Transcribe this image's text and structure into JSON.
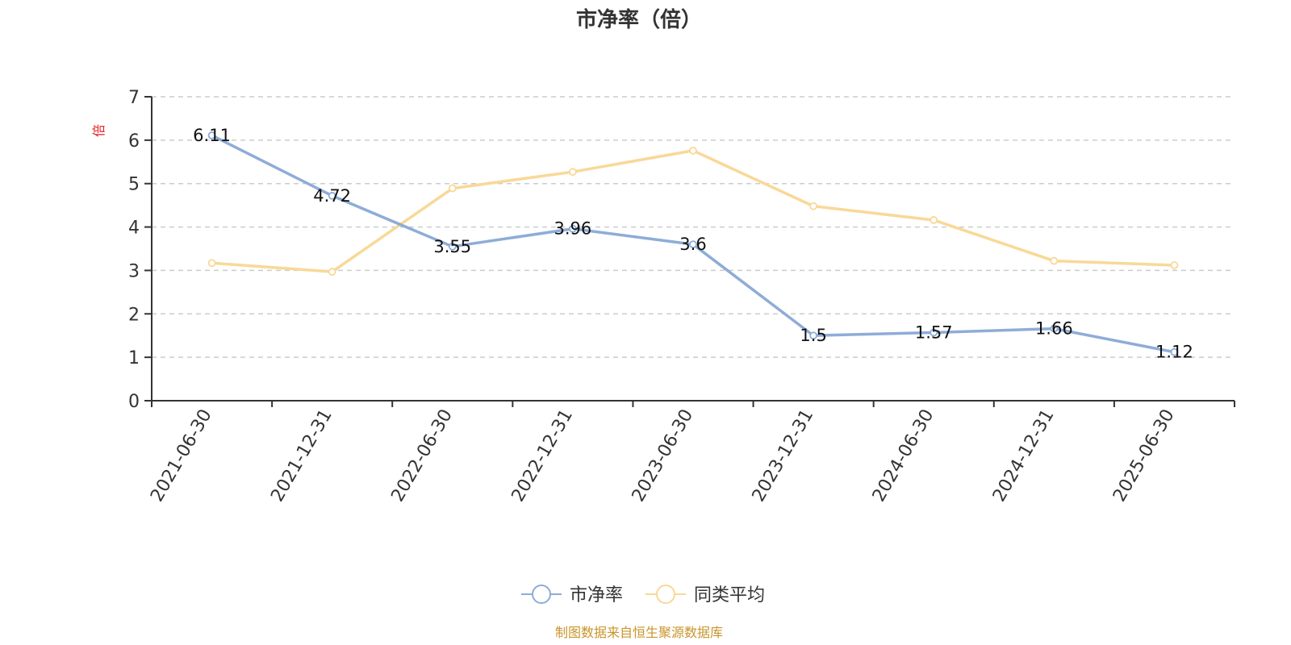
{
  "chart_data": {
    "type": "line",
    "title": "市净率（倍）",
    "ylabel": "倍",
    "ylim": [
      0,
      7
    ],
    "yticks": [
      "0",
      "1",
      "2",
      "3",
      "4",
      "5",
      "6",
      "7"
    ],
    "grid": true,
    "legend_position": "bottom",
    "categories": [
      "2021-06-30",
      "2021-12-31",
      "2022-06-30",
      "2022-12-31",
      "2023-06-30",
      "2023-12-31",
      "2024-06-30",
      "2024-12-31",
      "2025-06-30"
    ],
    "series": [
      {
        "name": "市净率",
        "color": "#8eacd8",
        "values": [
          6.11,
          4.72,
          3.55,
          3.96,
          3.6,
          1.5,
          1.57,
          1.66,
          1.12
        ],
        "data_labels": [
          "6.11",
          "4.72",
          "3.55",
          "3.96",
          "3.6",
          "1.5",
          "1.57",
          "1.66",
          "1.12"
        ]
      },
      {
        "name": "同类平均",
        "color": "#f9d897",
        "values": [
          3.17,
          2.97,
          4.89,
          5.27,
          5.76,
          4.48,
          4.16,
          3.22,
          3.12
        ]
      }
    ]
  },
  "footer": {
    "source": "制图数据来自恒生聚源数据库"
  }
}
